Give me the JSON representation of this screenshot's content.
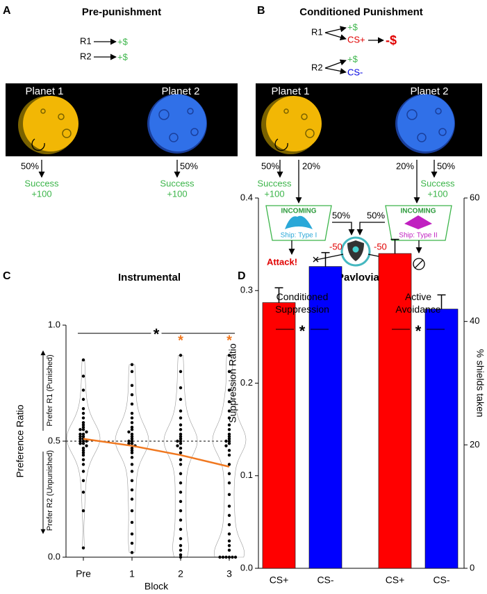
{
  "panels": {
    "a": {
      "letter": "A",
      "title": "Pre-punishment",
      "r1": "R1",
      "r1_outcome": "+$",
      "r2": "R2",
      "r2_outcome": "+$",
      "planet1": "Planet 1",
      "planet2": "Planet 2",
      "p1_prob": "50%",
      "p1_result": "Success",
      "p1_points": "+100",
      "p2_prob": "50%",
      "p2_result": "Success",
      "p2_points": "+100"
    },
    "b": {
      "letter": "B",
      "title": "Conditioned Punishment",
      "r1": "R1",
      "r1_outcome": "+$",
      "r1_cs": "CS+",
      "punisher": "-$",
      "r2": "R2",
      "r2_outcome": "+$",
      "r2_cs": "CS-",
      "planet1": "Planet 1",
      "planet2": "Planet 2",
      "p1_success_prob": "50%",
      "p1_ship_prob": "20%",
      "p1_result": "Success",
      "p1_points": "+100",
      "p2_ship_prob": "20%",
      "p2_success_prob": "50%",
      "p2_result": "Success",
      "p2_points": "+100",
      "ship1_header": "INCOMING",
      "ship1_name": "Ship: Type I",
      "ship2_header": "INCOMING",
      "ship2_name": "Ship: Type II",
      "shield_prob_1": "50%",
      "shield_prob_2": "50%",
      "loss_1": "-50",
      "loss_2": "-50",
      "attack": "Attack!"
    },
    "c": {
      "letter": "C"
    },
    "d": {
      "letter": "D"
    }
  },
  "chart_data": [
    {
      "type": "swarm",
      "title": "Instrumental",
      "ylabel": "Preference Ratio",
      "upper_label": "Prefer R1 (Punished)",
      "lower_label": "Prefer R2 (Unpunished)",
      "xlabel": "Block",
      "categories": [
        "Pre",
        "1",
        "2",
        "3"
      ],
      "ylim": [
        0,
        1
      ],
      "yticks": [
        {
          "value": 0,
          "label": "0.0"
        },
        0.5,
        {
          "value": 1,
          "label": "1.0"
        }
      ],
      "reference_line": 0.5,
      "points": [
        [
          0.85,
          0.78,
          0.72,
          0.68,
          0.64,
          0.62,
          0.6,
          0.58,
          0.57,
          0.56,
          0.55,
          0.55,
          0.54,
          0.53,
          0.53,
          0.52,
          0.52,
          0.51,
          0.51,
          0.5,
          0.5,
          0.5,
          0.49,
          0.49,
          0.48,
          0.47,
          0.46,
          0.45,
          0.44,
          0.42,
          0.4,
          0.37,
          0.33,
          0.28,
          0.2,
          0.04
        ],
        [
          0.83,
          0.8,
          0.74,
          0.7,
          0.66,
          0.62,
          0.6,
          0.58,
          0.56,
          0.55,
          0.54,
          0.53,
          0.52,
          0.51,
          0.5,
          0.5,
          0.49,
          0.49,
          0.48,
          0.47,
          0.46,
          0.45,
          0.43,
          0.4,
          0.37,
          0.33,
          0.29,
          0.25,
          0.2,
          0.15,
          0.1,
          0.06,
          0.02
        ],
        [
          0.87,
          0.8,
          0.73,
          0.68,
          0.63,
          0.6,
          0.57,
          0.55,
          0.53,
          0.52,
          0.51,
          0.5,
          0.5,
          0.49,
          0.48,
          0.47,
          0.45,
          0.42,
          0.4,
          0.36,
          0.32,
          0.28,
          0.24,
          0.2,
          0.16,
          0.12,
          0.08,
          0.05,
          0.03,
          0.01,
          0
        ],
        [
          0.87,
          0.8,
          0.72,
          0.67,
          0.63,
          0.6,
          0.57,
          0.55,
          0.53,
          0.52,
          0.51,
          0.5,
          0.5,
          0.49,
          0.48,
          0.46,
          0.44,
          0.4,
          0.36,
          0.32,
          0.27,
          0.22,
          0.18,
          0.14,
          0.1,
          0.07,
          0.05,
          0.03,
          0,
          0,
          0,
          0,
          0,
          0
        ]
      ],
      "mean_line": {
        "color": "#f07820",
        "values": [
          0.51,
          0.48,
          0.44,
          0.39
        ]
      },
      "bracket_significance": "*",
      "block_significance": {
        "color": "#f07820",
        "labels": [
          null,
          null,
          "*",
          "*"
        ]
      }
    },
    {
      "type": "bar",
      "title": "Pavlovian",
      "ylabel": "Suppression Ratio",
      "y2label": "% shields taken",
      "ylim": [
        0,
        0.4
      ],
      "yticks": [
        {
          "value": 0,
          "label": "0.0"
        },
        0.1,
        0.2,
        0.3,
        0.4
      ],
      "y2lim": [
        0,
        60
      ],
      "y2ticks": [
        0,
        20,
        40,
        60
      ],
      "series": [
        {
          "name": "Conditioned Suppression",
          "categories": [
            "CS+",
            "CS-"
          ],
          "colors": [
            "#ff0000",
            "#0000ff"
          ],
          "values": [
            0.287,
            0.326
          ],
          "errors": [
            0.016,
            0.015
          ],
          "significance": "*"
        },
        {
          "name": "Active Avoidance",
          "axis": "y2",
          "categories": [
            "CS+",
            "CS-"
          ],
          "colors": [
            "#ff0000",
            "#0000ff"
          ],
          "values": [
            51,
            42
          ],
          "errors": [
            2.3,
            2.3
          ],
          "significance": "*"
        }
      ]
    }
  ]
}
